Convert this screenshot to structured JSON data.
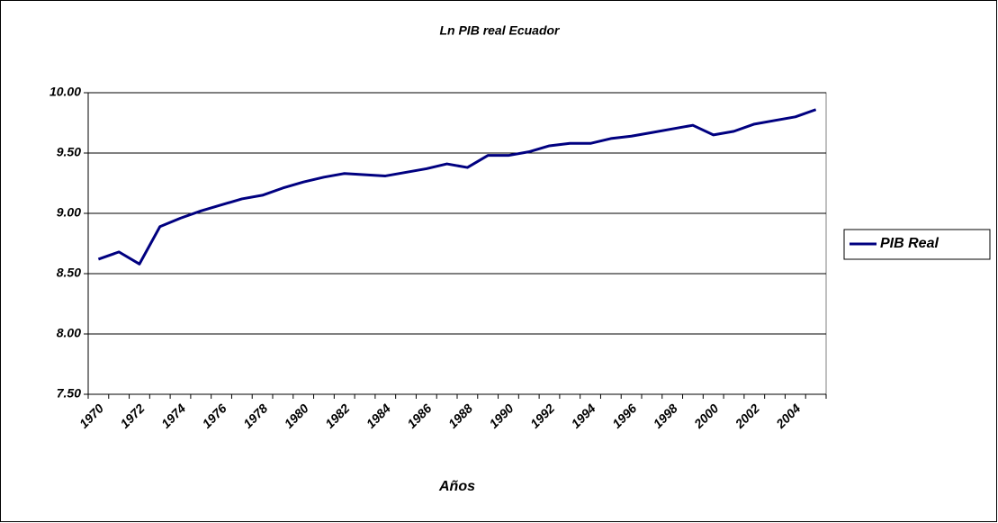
{
  "chart_data": {
    "type": "line",
    "title": "Ln PIB real Ecuador",
    "x_label": "Años",
    "categories": [
      "1970",
      null,
      "1972",
      null,
      "1974",
      null,
      "1976",
      null,
      "1978",
      null,
      "1980",
      null,
      "1982",
      null,
      "1984",
      null,
      "1986",
      null,
      "1988",
      null,
      "1990",
      null,
      "1992",
      null,
      "1994",
      null,
      "1996",
      null,
      "1998",
      null,
      "2000",
      null,
      "2002",
      null,
      "2004",
      null
    ],
    "series": [
      {
        "name": "PIB Real",
        "color": "#000080",
        "values": [
          8.62,
          8.68,
          8.58,
          8.89,
          8.96,
          9.02,
          9.07,
          9.12,
          9.15,
          9.21,
          9.26,
          9.3,
          9.33,
          9.32,
          9.31,
          9.34,
          9.37,
          9.41,
          9.38,
          9.48,
          9.48,
          9.51,
          9.56,
          9.58,
          9.58,
          9.62,
          9.64,
          9.67,
          9.7,
          9.73,
          9.65,
          9.68,
          9.74,
          9.77,
          9.8,
          9.86
        ]
      }
    ],
    "ylim": [
      7.5,
      10
    ],
    "yticks": [
      {
        "value": 7.5,
        "label": "7.50"
      },
      {
        "value": 8,
        "label": "8.00"
      },
      {
        "value": 8.5,
        "label": "8.50"
      },
      {
        "value": 9,
        "label": "9.00"
      },
      {
        "value": 9.5,
        "label": "9.50"
      },
      {
        "value": 10,
        "label": "10.00"
      }
    ],
    "grid": true,
    "legend": "right"
  }
}
